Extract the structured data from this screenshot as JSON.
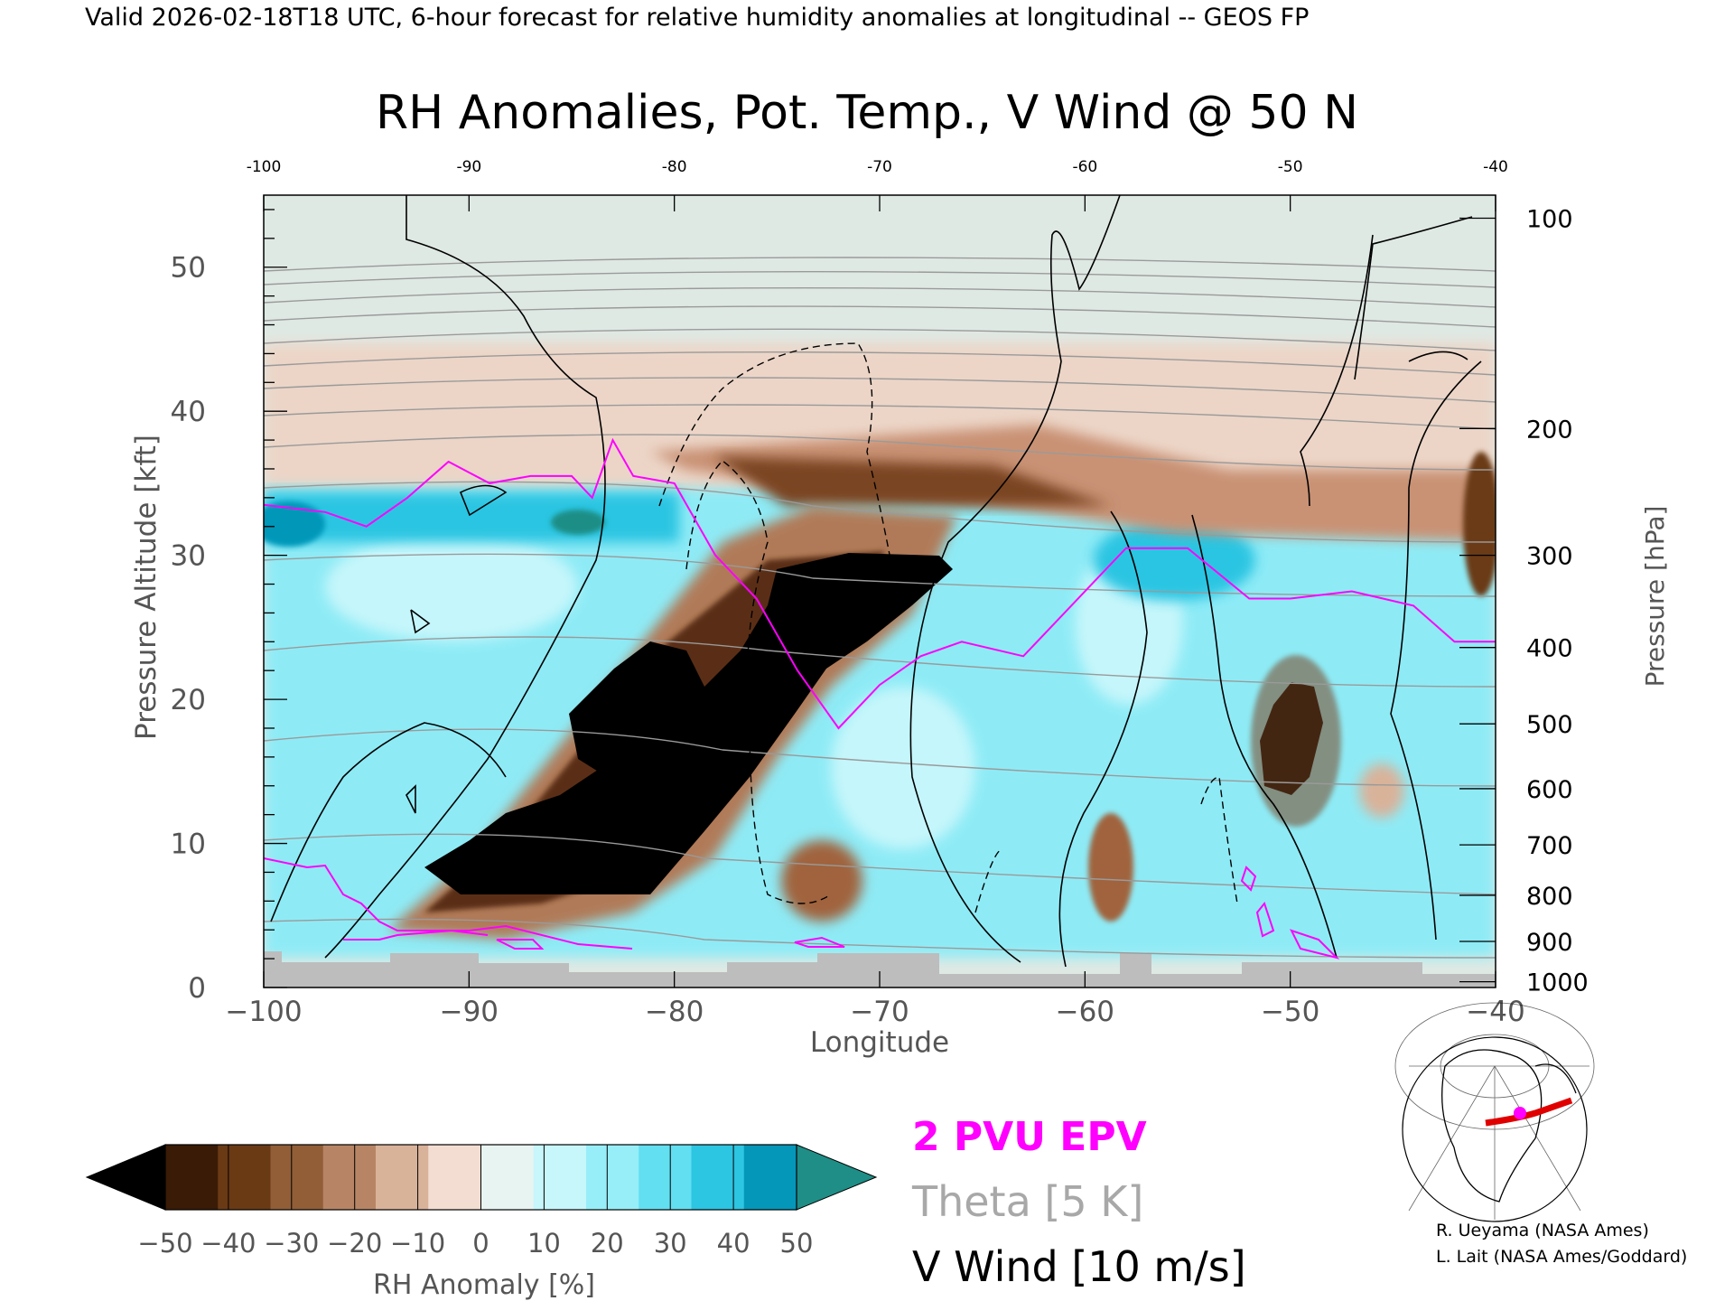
{
  "header": {
    "valid_line": "Valid 2026-02-18T18 UTC, 6-hour forecast for relative humidity anomalies at longitudinal -- GEOS FP"
  },
  "chart_data": {
    "type": "heatmap",
    "title": "RH Anomalies, Pot. Temp., V Wind @ 50 N",
    "xlabel": "Longitude",
    "ylabel_left": "Pressure Altitude [kft]",
    "ylabel_right": "Pressure [hPa]",
    "xlim": [
      -100,
      -40
    ],
    "ylim": [
      0,
      55
    ],
    "x_ticks_bottom": [
      {
        "value": -100,
        "label": "−100"
      },
      {
        "value": -90,
        "label": "−90"
      },
      {
        "value": -80,
        "label": "−80"
      },
      {
        "value": -70,
        "label": "−70"
      },
      {
        "value": -60,
        "label": "−60"
      },
      {
        "value": -50,
        "label": "−50"
      },
      {
        "value": -40,
        "label": "−40"
      }
    ],
    "x_ticks_top": [
      {
        "value": -100,
        "label": "-100"
      },
      {
        "value": -90,
        "label": "-90"
      },
      {
        "value": -80,
        "label": "-80"
      },
      {
        "value": -70,
        "label": "-70"
      },
      {
        "value": -60,
        "label": "-60"
      },
      {
        "value": -50,
        "label": "-50"
      },
      {
        "value": -40,
        "label": "-40"
      }
    ],
    "y_ticks_left": [
      {
        "value": 0,
        "label": "0"
      },
      {
        "value": 10,
        "label": "10"
      },
      {
        "value": 20,
        "label": "20"
      },
      {
        "value": 30,
        "label": "30"
      },
      {
        "value": 40,
        "label": "40"
      },
      {
        "value": 50,
        "label": "50"
      }
    ],
    "y_ticks_right": [
      {
        "kft": 53.4,
        "label": "100"
      },
      {
        "kft": 38.8,
        "label": "200"
      },
      {
        "kft": 30.0,
        "label": "300"
      },
      {
        "kft": 23.6,
        "label": "400"
      },
      {
        "kft": 18.3,
        "label": "500"
      },
      {
        "kft": 13.8,
        "label": "600"
      },
      {
        "kft": 9.9,
        "label": "700"
      },
      {
        "kft": 6.4,
        "label": "800"
      },
      {
        "kft": 3.2,
        "label": "900"
      },
      {
        "kft": 0.4,
        "label": "1000"
      }
    ],
    "theta_levels": [
      280,
      290,
      300,
      310,
      320,
      330,
      340,
      350,
      360,
      370,
      380,
      390,
      400,
      410,
      420
    ],
    "epv_2pvu_line": [
      [
        -100,
        33.5
      ],
      [
        -97,
        33
      ],
      [
        -95,
        32
      ],
      [
        -93,
        34
      ],
      [
        -91,
        36.5
      ],
      [
        -89,
        35
      ],
      [
        -87,
        35.5
      ],
      [
        -85,
        35.5
      ],
      [
        -84,
        34
      ],
      [
        -83,
        38
      ],
      [
        -82,
        35.5
      ],
      [
        -80,
        35
      ],
      [
        -78,
        30
      ],
      [
        -76,
        27
      ],
      [
        -74,
        22
      ],
      [
        -72,
        18
      ],
      [
        -70,
        21
      ],
      [
        -68,
        23
      ],
      [
        -66,
        24
      ],
      [
        -63,
        23
      ],
      [
        -61,
        26
      ],
      [
        -58,
        30.5
      ],
      [
        -55,
        30.5
      ],
      [
        -52,
        27
      ],
      [
        -50,
        27
      ],
      [
        -47,
        27.5
      ],
      [
        -44,
        26.5
      ],
      [
        -42,
        24
      ],
      [
        -40,
        24
      ]
    ],
    "colorbar": {
      "label": "RH Anomaly [%]",
      "ticks": [
        "−50",
        "−40",
        "−30",
        "−20",
        "−10",
        "0",
        "10",
        "20",
        "30",
        "40",
        "50"
      ],
      "colors": [
        "#000000",
        "#3a1b06",
        "#6a3a15",
        "#915e38",
        "#b78565",
        "#d9b29a",
        "#f3ddd2",
        "#e8f4f2",
        "#c7f6fb",
        "#97eef8",
        "#62dff1",
        "#2cc5e2",
        "#0497b9",
        "#1e8e86"
      ]
    },
    "legend": [
      "2 PVU EPV",
      "Theta [5 K]",
      "V Wind [10 m/s]"
    ],
    "legend_colors": [
      "#ff00ff",
      "#a8a8a8",
      "#000000"
    ]
  },
  "credits": {
    "line1": "R. Ueyama (NASA Ames)",
    "line2": "L. Lait (NASA Ames/Goddard)"
  }
}
